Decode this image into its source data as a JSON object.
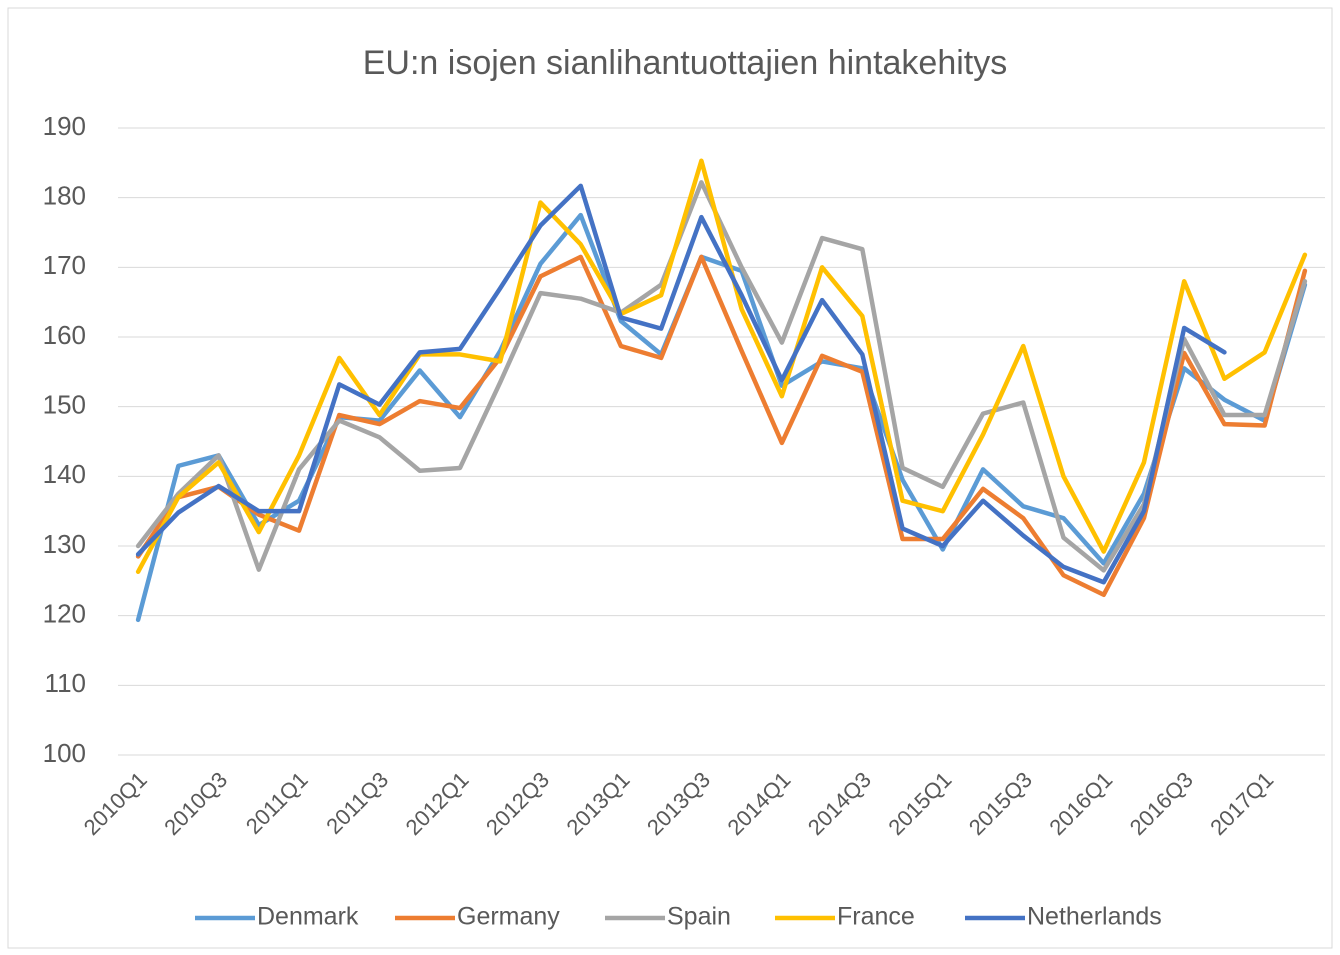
{
  "chart_data": {
    "type": "line",
    "title": "EU:n isojen sianlihantuottajien hintakehitys",
    "categories": [
      "2010Q1",
      null,
      "2010Q3",
      null,
      "2011Q1",
      null,
      "2011Q3",
      null,
      "2012Q1",
      null,
      "2012Q3",
      null,
      "2013Q1",
      null,
      "2013Q3",
      null,
      "2014Q1",
      null,
      "2014Q3",
      null,
      "2015Q1",
      null,
      "2015Q3",
      null,
      "2016Q1",
      null,
      "2016Q3",
      null,
      "2017Q1",
      null
    ],
    "series": [
      {
        "name": "Denmark",
        "color": "#5b9bd5",
        "values": [
          119.4,
          141.5,
          143,
          133,
          136.5,
          148.5,
          148,
          155.2,
          148.5,
          158,
          170.5,
          177.5,
          162.3,
          157.5,
          171.5,
          169.5,
          153,
          156.5,
          155.5,
          139.5,
          129.5,
          141,
          135.7,
          134,
          127.5,
          137.5,
          155.5,
          151,
          148,
          167.5
        ]
      },
      {
        "name": "Germany",
        "color": "#ed7d31",
        "values": [
          128.5,
          137,
          138.5,
          134.5,
          132.2,
          148.8,
          147.5,
          150.8,
          149.8,
          157,
          168.7,
          171.5,
          158.7,
          157,
          171.5,
          158,
          144.8,
          157.3,
          155,
          131,
          131,
          138.2,
          134,
          125.8,
          123,
          134,
          157.7,
          147.5,
          147.3,
          169.5
        ]
      },
      {
        "name": "Spain",
        "color": "#a5a5a5",
        "values": [
          130,
          137.5,
          143,
          126.6,
          141,
          148,
          145.6,
          140.8,
          141.2,
          153.5,
          166.3,
          165.5,
          163.5,
          167.5,
          182.2,
          170,
          159.2,
          174.2,
          172.6,
          141.2,
          138.5,
          149,
          150.6,
          131.2,
          126.5,
          136,
          159.7,
          148.8,
          148.8,
          168
        ]
      },
      {
        "name": "France",
        "color": "#ffc000",
        "values": [
          126.3,
          137,
          142,
          132,
          143,
          157,
          148.8,
          157.5,
          157.5,
          156.5,
          179.3,
          173.3,
          163.3,
          166,
          185.3,
          164,
          151.5,
          170,
          163,
          136.5,
          135,
          146,
          158.7,
          140,
          129.2,
          142,
          168,
          154,
          157.8,
          171.8
        ]
      },
      {
        "name": "Netherlands",
        "color": "#4472c4",
        "values": [
          128.8,
          134.8,
          138.6,
          135,
          135,
          153.2,
          150.3,
          157.8,
          158.3,
          167,
          176,
          181.7,
          162.8,
          161.2,
          177.2,
          166,
          153.8,
          165.3,
          157.5,
          132.5,
          130,
          136.5,
          131.5,
          127,
          124.8,
          135,
          161.3,
          157.8,
          null,
          null
        ]
      }
    ],
    "ylim": [
      100,
      190
    ],
    "yticks": [
      100,
      110,
      120,
      130,
      140,
      150,
      160,
      170,
      180,
      190
    ],
    "grid": true,
    "legend": "bottom"
  }
}
